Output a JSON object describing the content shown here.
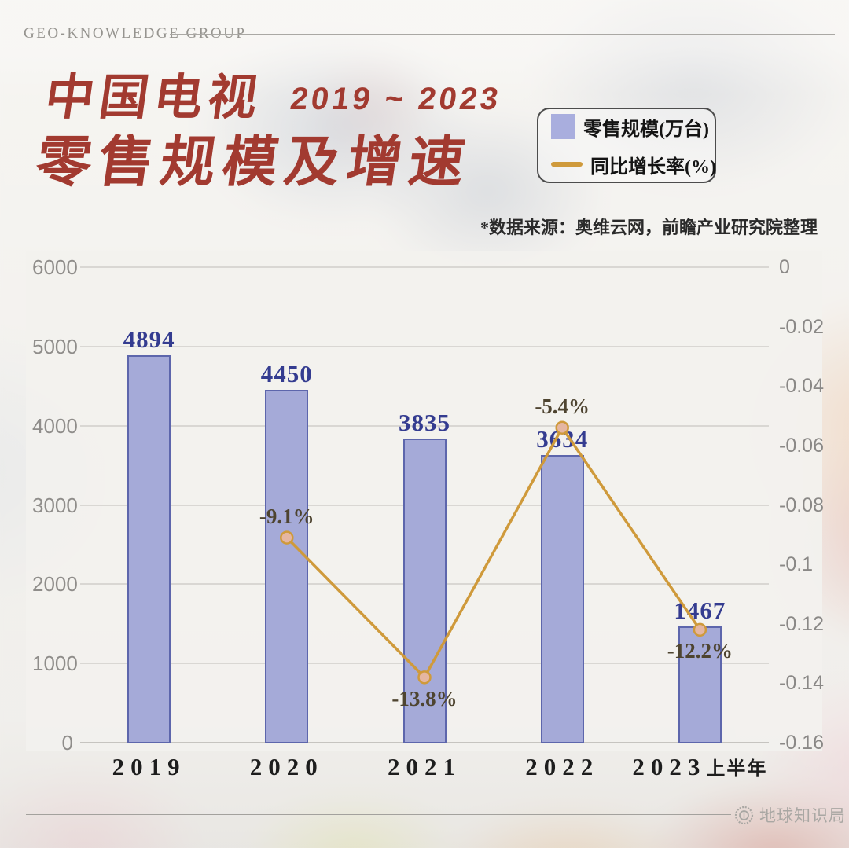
{
  "header": {
    "brand": "GEO-KNOWLEDGE GROUP"
  },
  "title": {
    "line1": "中国电视",
    "period": "2019 ~ 2023",
    "line2": "零售规模及增速",
    "accent_color": "#a23a30"
  },
  "legend": {
    "items": [
      {
        "swatch": "bar-swatch",
        "label": "零售规模(万台)",
        "color": "#a9aede"
      },
      {
        "swatch": "line-swatch",
        "label": "同比增长率(%)",
        "color": "#cf9a3b"
      }
    ]
  },
  "source_note": "*数据来源：奥维云网，前瞻产业研究院整理",
  "footer": {
    "watermark": "地球知识局",
    "logo": "earth-logo-icon"
  },
  "chart_data": {
    "type": "bar",
    "subtype": "combo-bar-line",
    "categories": [
      "2019",
      "2020",
      "2021",
      "2022",
      "2023上半年"
    ],
    "series": [
      {
        "name": "零售规模(万台)",
        "kind": "bar",
        "axis": "left",
        "values": [
          4894,
          4450,
          3835,
          3634,
          1467
        ],
        "bar_color": "#a5aad8",
        "bar_border": "#5d66ac",
        "label_color": "#343c90"
      },
      {
        "name": "同比增长率(%)",
        "kind": "line",
        "axis": "right",
        "values": [
          null,
          -0.091,
          -0.138,
          -0.054,
          -0.122
        ],
        "point_labels": [
          null,
          "-9.1%",
          "-13.8%",
          "-5.4%",
          "-12.2%"
        ],
        "label_positions": [
          null,
          "above",
          "below",
          "above",
          "below"
        ],
        "line_color": "#cf9a3b",
        "marker_fill": "#e5b6a2",
        "label_color": "#4e4430"
      }
    ],
    "left_axis": {
      "range": [
        0,
        6000
      ],
      "tick_labels": [
        "0",
        "1000",
        "2000",
        "3000",
        "4000",
        "5000",
        "6000"
      ]
    },
    "right_axis": {
      "range": [
        0,
        -0.16
      ],
      "tick_labels": [
        "0",
        "-0.02",
        "-0.04",
        "-0.06",
        "-0.08",
        "-0.1",
        "-0.12",
        "-0.14",
        "-0.16"
      ]
    },
    "grid": true,
    "legend_position": "top-right"
  }
}
